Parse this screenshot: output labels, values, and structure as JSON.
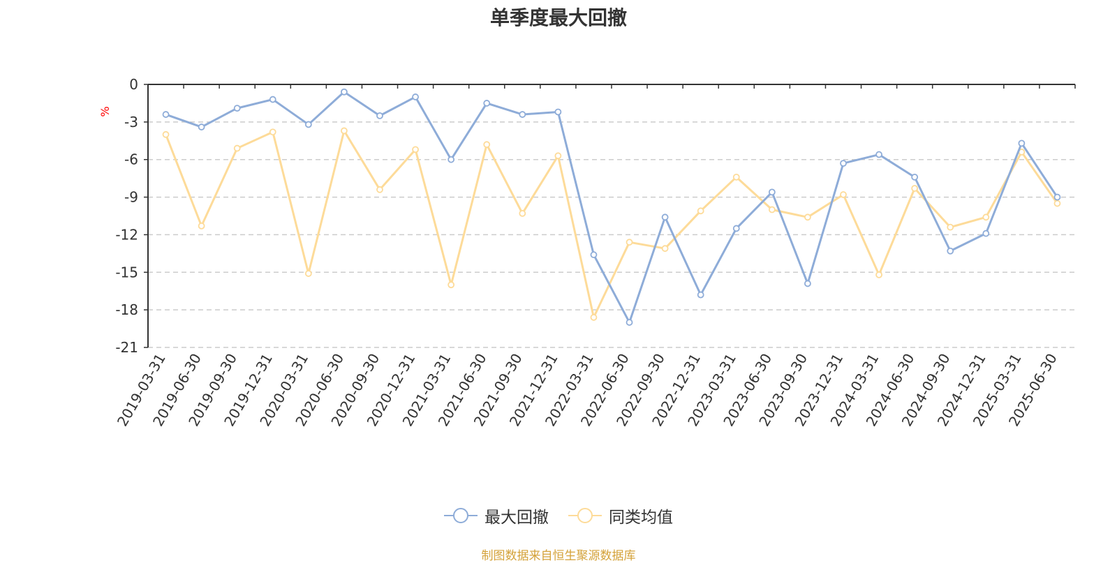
{
  "chart_data": {
    "type": "line",
    "title": "单季度最大回撤",
    "ylabel": "%",
    "xlabel": "",
    "ylim": [
      -21,
      0
    ],
    "yticks": [
      0,
      -3,
      -6,
      -9,
      -12,
      -15,
      -18,
      -21
    ],
    "grid": true,
    "legend_position": "bottom",
    "categories": [
      "2019-03-31",
      "2019-06-30",
      "2019-09-30",
      "2019-12-31",
      "2020-03-31",
      "2020-06-30",
      "2020-09-30",
      "2020-12-31",
      "2021-03-31",
      "2021-06-30",
      "2021-09-30",
      "2021-12-31",
      "2022-03-31",
      "2022-06-30",
      "2022-09-30",
      "2022-12-31",
      "2023-03-31",
      "2023-06-30",
      "2023-09-30",
      "2023-12-31",
      "2024-03-31",
      "2024-06-30",
      "2024-09-30",
      "2024-12-31",
      "2025-03-31",
      "2025-06-30"
    ],
    "series": [
      {
        "name": "最大回撤",
        "color": "#8eacd8",
        "values": [
          -2.4,
          -3.4,
          -1.9,
          -1.2,
          -3.2,
          -0.6,
          -2.5,
          -1.0,
          -6.0,
          -1.5,
          -2.4,
          -2.2,
          -13.6,
          -19.0,
          -10.6,
          -16.8,
          -11.5,
          -8.6,
          -15.9,
          -6.3,
          -5.6,
          -7.4,
          -13.3,
          -11.9,
          -4.7,
          -9.0
        ]
      },
      {
        "name": "同类均值",
        "color": "#fddb99",
        "values": [
          -4.0,
          -11.3,
          -5.1,
          -3.8,
          -15.1,
          -3.7,
          -8.4,
          -5.2,
          -16.0,
          -4.8,
          -10.3,
          -5.7,
          -18.6,
          -12.6,
          -13.1,
          -10.1,
          -7.4,
          -10.0,
          -10.6,
          -8.8,
          -15.2,
          -8.3,
          -11.4,
          -10.6,
          -5.4,
          -9.5
        ]
      }
    ]
  },
  "source_note": "制图数据来自恒生聚源数据库",
  "colors": {
    "axis": "#333333",
    "grid": "#cccccc",
    "ylabel": "#ff0000",
    "source": "#d4a23a"
  }
}
